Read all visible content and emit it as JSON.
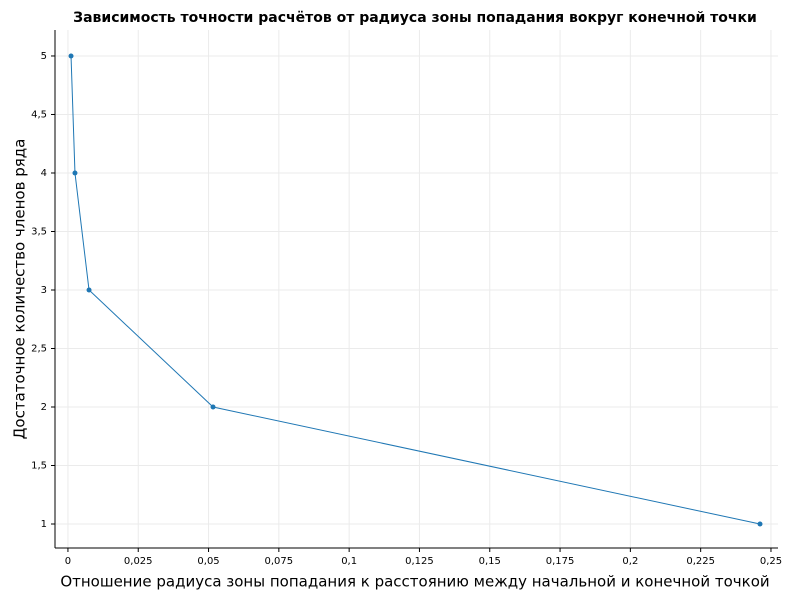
{
  "chart_data": {
    "type": "line",
    "title": "Зависимость точности расчётов от радиуса зоны попадания вокруг конечной точки",
    "x_label": "Отношение радиуса зоны попадания к расстоянию между начальной и конечной точкой",
    "y_label": "Достаточное количество членов ряда",
    "x": [
      0.0011,
      0.0025,
      0.0075,
      0.0516,
      0.2461
    ],
    "series": [
      {
        "name": "Достаточное количество членов ряда",
        "color": "#1f77b4",
        "values": [
          5,
          4,
          3,
          2,
          1
        ]
      }
    ],
    "xlim": [
      -0.0046,
      0.2525
    ],
    "ylim": [
      0.795,
      5.222
    ],
    "xticks": [
      0,
      {
        "value": 0.025,
        "label": "0,025"
      },
      {
        "value": 0.05,
        "label": "0,05"
      },
      {
        "value": 0.075,
        "label": "0,075"
      },
      {
        "value": 0.1,
        "label": "0,1"
      },
      {
        "value": 0.125,
        "label": "0,125"
      },
      {
        "value": 0.15,
        "label": "0,15"
      },
      {
        "value": 0.175,
        "label": "0,175"
      },
      {
        "value": 0.2,
        "label": "0,2"
      },
      {
        "value": 0.225,
        "label": "0,225"
      },
      {
        "value": 0.25,
        "label": "0,25"
      }
    ],
    "yticks": [
      1,
      {
        "value": 1.5,
        "label": "1,5"
      },
      2,
      {
        "value": 2.5,
        "label": "2,5"
      },
      3,
      {
        "value": 3.5,
        "label": "3,5"
      },
      4,
      {
        "value": 4.5,
        "label": "4,5"
      },
      5
    ],
    "grid": true
  }
}
